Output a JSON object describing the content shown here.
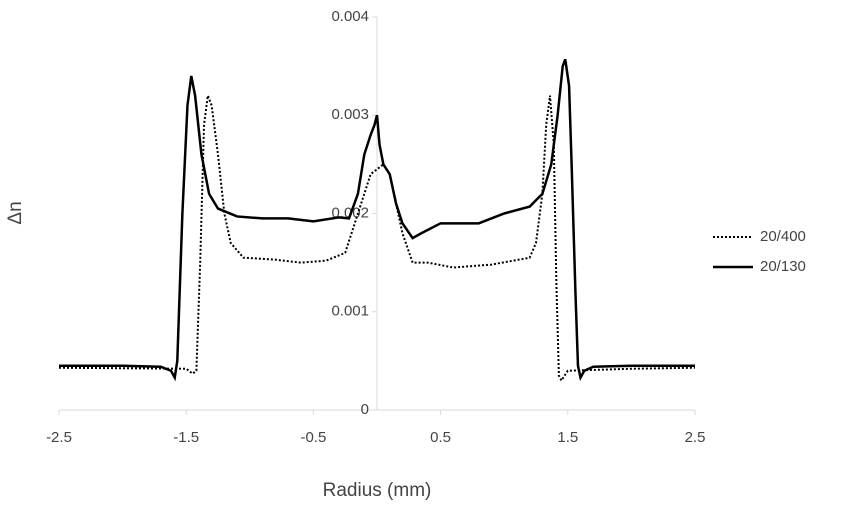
{
  "chart_data": {
    "type": "line",
    "x_label": "Radius (mm)",
    "y_label": "Δn",
    "xlim": [
      -2.5,
      2.5
    ],
    "xticks": [
      -2.5,
      -1.5,
      -0.5,
      0.5,
      1.5,
      2.5
    ],
    "ylim": [
      0,
      0.004
    ],
    "yticks": [
      0,
      0.001,
      0.002,
      0.003,
      0.004
    ],
    "grid": false,
    "legend": "right",
    "series": [
      {
        "name": "20/400",
        "color": "#000000",
        "line_style": "dotted",
        "x": [
          -2.5,
          -1.5,
          -1.45,
          -1.42,
          -1.39,
          -1.36,
          -1.33,
          -1.3,
          -1.25,
          -1.2,
          -1.15,
          -1.05,
          -0.8,
          -0.6,
          -0.4,
          -0.25,
          -0.15,
          -0.05,
          0,
          0.05,
          0.1,
          0.2,
          0.28,
          0.4,
          0.6,
          0.9,
          1.2,
          1.25,
          1.3,
          1.33,
          1.36,
          1.39,
          1.41,
          1.43,
          1.45,
          1.5,
          2.0,
          2.5
        ],
        "values": [
          0.00043,
          0.00042,
          0.00037,
          0.0004,
          0.0015,
          0.0029,
          0.0032,
          0.0031,
          0.0026,
          0.002,
          0.0017,
          0.00155,
          0.00153,
          0.0015,
          0.00152,
          0.0016,
          0.002,
          0.0024,
          0.00245,
          0.0025,
          0.0024,
          0.0018,
          0.0015,
          0.0015,
          0.00145,
          0.00148,
          0.00155,
          0.0017,
          0.0022,
          0.0029,
          0.0032,
          0.0027,
          0.0013,
          0.00035,
          0.0003,
          0.0004,
          0.00042,
          0.00043
        ]
      },
      {
        "name": "20/130",
        "color": "#000000",
        "line_style": "solid",
        "x": [
          -2.5,
          -2.0,
          -1.7,
          -1.62,
          -1.59,
          -1.57,
          -1.53,
          -1.49,
          -1.46,
          -1.43,
          -1.38,
          -1.32,
          -1.25,
          -1.1,
          -0.9,
          -0.7,
          -0.5,
          -0.3,
          -0.22,
          -0.15,
          -0.1,
          -0.05,
          -0.02,
          0,
          0.02,
          0.05,
          0.1,
          0.15,
          0.2,
          0.28,
          0.35,
          0.5,
          0.8,
          1.0,
          1.2,
          1.3,
          1.37,
          1.42,
          1.46,
          1.48,
          1.51,
          1.53,
          1.56,
          1.58,
          1.6,
          1.63,
          1.7,
          2.0,
          2.5
        ],
        "values": [
          0.00045,
          0.00045,
          0.00044,
          0.0004,
          0.00033,
          0.0005,
          0.002,
          0.0031,
          0.0034,
          0.0032,
          0.0026,
          0.0022,
          0.00205,
          0.00197,
          0.00195,
          0.00195,
          0.00192,
          0.00196,
          0.00195,
          0.0022,
          0.0026,
          0.0028,
          0.0029,
          0.003,
          0.0027,
          0.0025,
          0.0024,
          0.0021,
          0.0019,
          0.00175,
          0.0018,
          0.0019,
          0.0019,
          0.002,
          0.00207,
          0.0022,
          0.0025,
          0.003,
          0.0035,
          0.00357,
          0.0033,
          0.0025,
          0.0012,
          0.00045,
          0.00033,
          0.0004,
          0.00044,
          0.00045,
          0.00045
        ]
      }
    ]
  }
}
